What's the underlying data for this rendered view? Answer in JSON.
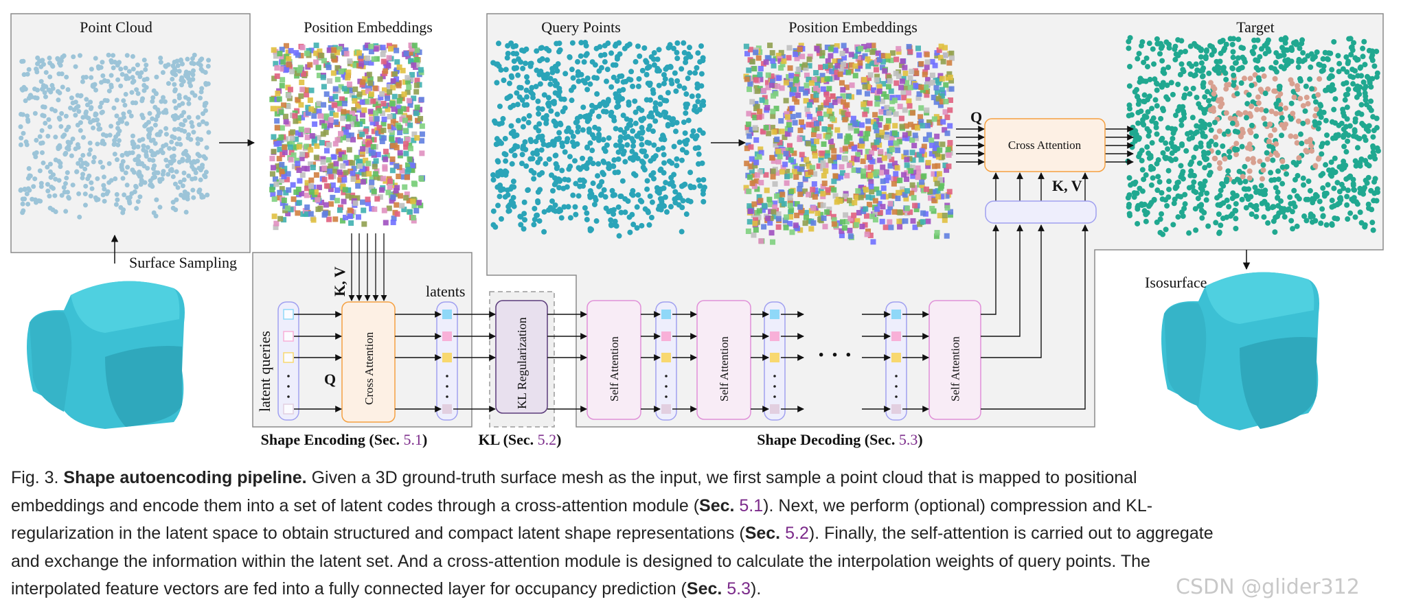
{
  "figure": {
    "labels": {
      "point_cloud": "Point Cloud",
      "position_embeddings_left": "Position Embeddings",
      "query_points": "Query Points",
      "position_embeddings_right": "Position Embeddings",
      "target": "Target",
      "surface_sampling": "Surface Sampling",
      "isosurface": "Isosurface",
      "latent_queries": "latent queries",
      "latents": "latents",
      "q_enc": "Q",
      "kv_enc": "K, V",
      "q_dec": "Q",
      "kv_dec": "K, V",
      "cross_attention_enc": "Cross Attention",
      "cross_attention_dec": "Cross Attention",
      "kl_regularization": "KL Regularization",
      "self_attention": "Self Attention",
      "ellipsis": "· · ·"
    },
    "section_labels": {
      "encoding": {
        "text": "Shape Encoding (Sec. ",
        "num": "5.1",
        "close": ")"
      },
      "kl": {
        "text": "KL (Sec. ",
        "num": "5.2",
        "close": ")"
      },
      "decoding": {
        "text": "Shape Decoding (Sec. ",
        "num": "5.3",
        "close": ")"
      }
    },
    "colors": {
      "latent_blue": "#8fd8f8",
      "latent_pink": "#f8b0d8",
      "latent_yellow": "#f8d870",
      "latent_lavender": "#e2cfe0",
      "cross_attention_stroke": "#f5a040",
      "self_attention_stroke": "#e090d8",
      "kl_stroke": "#5a3a7a",
      "section_number": "#7b2a8a",
      "chair": "#3cc0d4"
    }
  },
  "caption": {
    "lines": [
      [
        {
          "t": "Fig. 3.  ",
          "s": ""
        },
        {
          "t": "Shape autoencoding pipeline.",
          "s": "b"
        },
        {
          "t": " Given a 3D ground-truth surface mesh as the input, we first sample a point cloud that is mapped to positional",
          "s": ""
        }
      ],
      [
        {
          "t": "embeddings and encode them into a set of latent codes through a cross-attention module (",
          "s": ""
        },
        {
          "t": "Sec.",
          "s": "b"
        },
        {
          "t": " ",
          "s": ""
        },
        {
          "t": "5.1",
          "s": "p"
        },
        {
          "t": "). Next, we perform (optional) compression and KL-",
          "s": ""
        }
      ],
      [
        {
          "t": "regularization in the latent space to obtain structured and compact latent shape representations (",
          "s": ""
        },
        {
          "t": "Sec.",
          "s": "b"
        },
        {
          "t": " ",
          "s": ""
        },
        {
          "t": "5.2",
          "s": "p"
        },
        {
          "t": "). Finally, the self-attention is carried out to aggregate",
          "s": ""
        }
      ],
      [
        {
          "t": "and exchange the information within the latent set. And a cross-attention module is designed to calculate the interpolation weights of query points. The",
          "s": ""
        }
      ],
      [
        {
          "t": "interpolated feature vectors are fed into a fully connected layer for occupancy prediction (",
          "s": ""
        },
        {
          "t": "Sec.",
          "s": "b"
        },
        {
          "t": " ",
          "s": ""
        },
        {
          "t": "5.3",
          "s": "p"
        },
        {
          "t": ").",
          "s": ""
        }
      ]
    ]
  },
  "watermark": "CSDN @glider312"
}
